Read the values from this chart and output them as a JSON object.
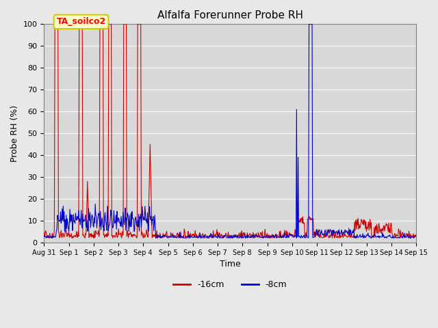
{
  "title": "Alfalfa Forerunner Probe RH",
  "ylabel": "Probe RH (%)",
  "xlabel": "Time",
  "annotation_text": "TA_soilco2",
  "ylim": [
    0,
    100
  ],
  "xlim_days": 15,
  "legend_labels": [
    "-16cm",
    "-8cm"
  ],
  "red_color": "#cc0000",
  "blue_color": "#0000cc",
  "bg_color": "#d8d8d8",
  "fig_bg": "#e8e8e8",
  "grid_color": "#ffffff",
  "annotation_bg": "#ffffcc",
  "annotation_edge": "#cccc00",
  "title_fontsize": 11,
  "axis_label_fontsize": 9,
  "tick_fontsize": 7,
  "legend_fontsize": 9,
  "xtick_labels": [
    "Aug 31",
    "Sep 1",
    "Sep 2",
    "Sep 3",
    "Sep 4",
    "Sep 5",
    "Sep 6",
    "Sep 7",
    "Sep 8",
    "Sep 9",
    "Sep 10",
    "Sep 11",
    "Sep 12",
    "Sep 13",
    "Sep 14",
    "Sep 15"
  ]
}
